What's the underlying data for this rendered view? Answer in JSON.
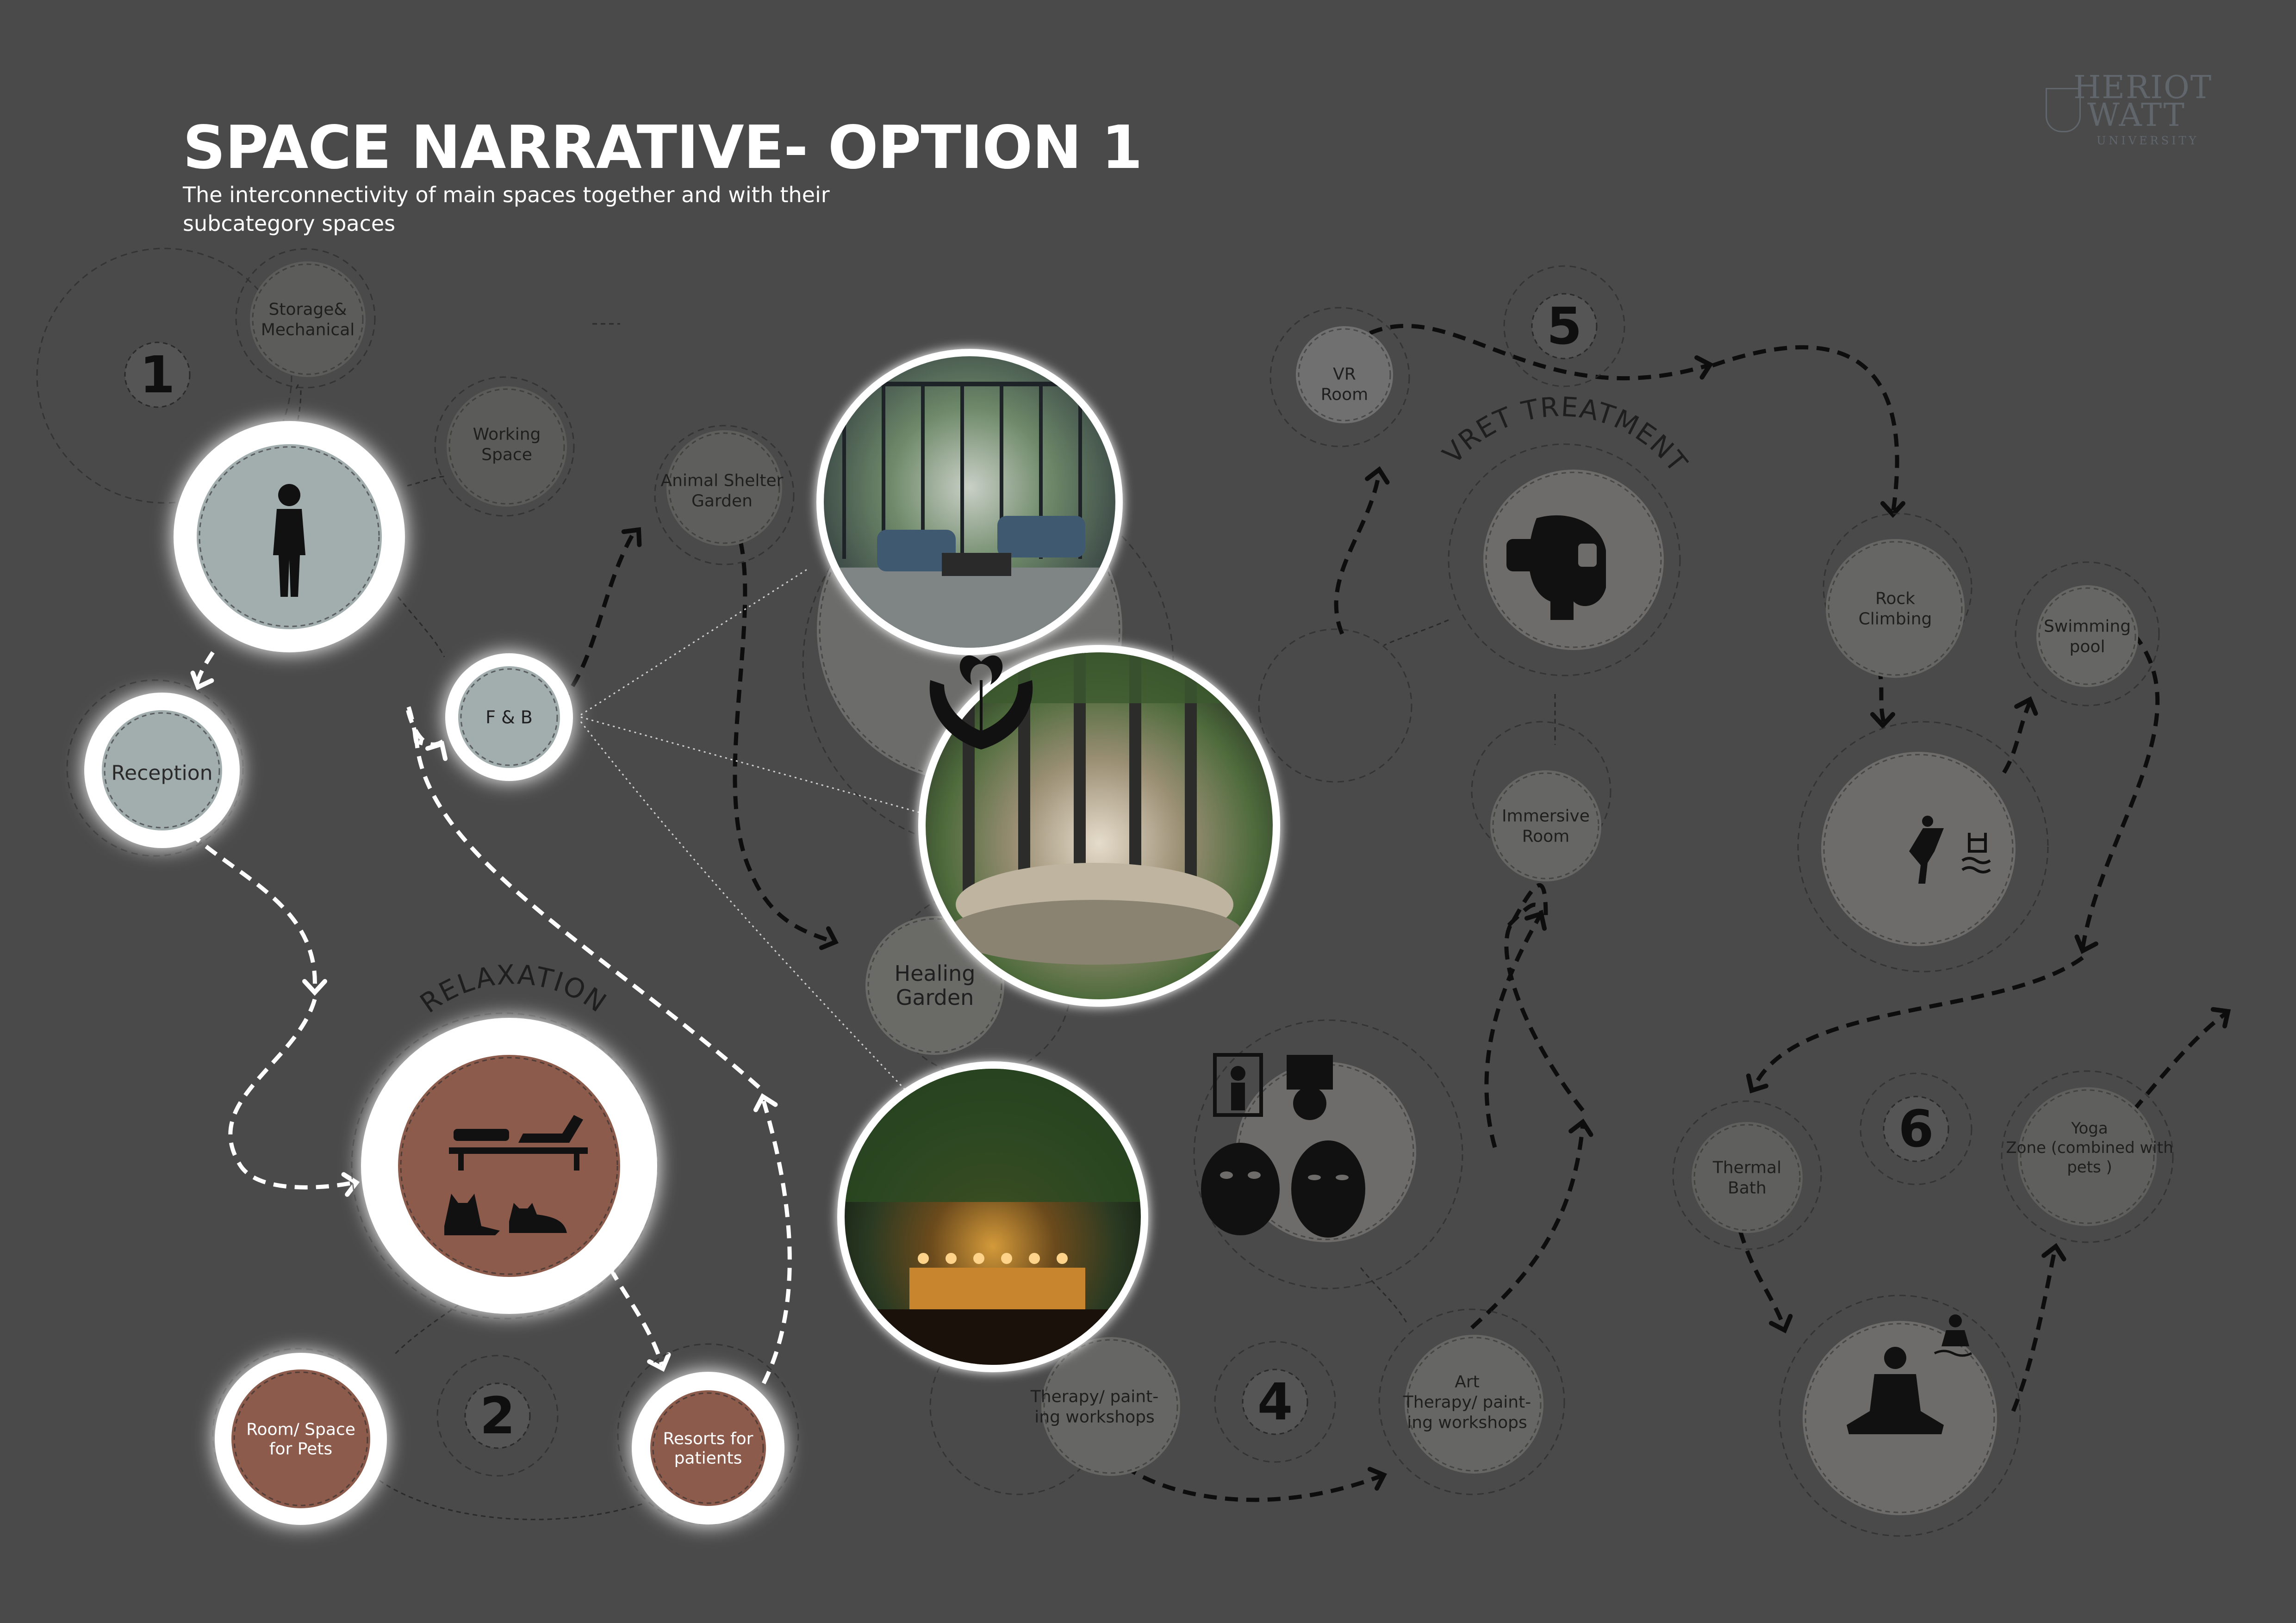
{
  "title": "SPACE NARRATIVE- OPTION 1",
  "subtitle_line1": "The interconnectivity of main spaces together and with their",
  "subtitle_line2": "subcategory spaces",
  "logo": {
    "line1": "HERIOT",
    "line2": "WATT",
    "line3": "UNIVERSITY"
  },
  "zone_numbers": [
    "1",
    "2",
    "4",
    "5",
    "6"
  ],
  "curved_labels": {
    "relaxation": "RELAXATION",
    "vret": "VRET TREATMENT"
  },
  "nodes": {
    "storage": [
      "Storage&",
      "Mechanical"
    ],
    "working": [
      "Working",
      "Space"
    ],
    "animal_shelter": [
      "Animal Shelter",
      "Garden"
    ],
    "fnb": [
      "F & B"
    ],
    "reception": [
      "Reception"
    ],
    "healing": [
      "Healing",
      "Garden"
    ],
    "room_pets": [
      "Room/ Space",
      "for Pets"
    ],
    "resorts": [
      "Resorts for",
      "patients"
    ],
    "therapy_left": [
      "Therapy/ paint-",
      "ing workshops"
    ],
    "art_therapy": [
      "Art",
      "Therapy/ paint-",
      "ing workshops"
    ],
    "vr_room": [
      "VR",
      "Room"
    ],
    "immersive": [
      "Immersive",
      "Room"
    ],
    "rock": [
      "Rock",
      "Climbing"
    ],
    "swimming": [
      "Swimming",
      "pool"
    ],
    "thermal": [
      "Thermal",
      "Bath"
    ],
    "yoga": [
      "Yoga",
      "Zone (combined with",
      "pets )"
    ]
  },
  "icons": [
    "person-icon",
    "hands-flower-icon",
    "loungers-pets-icon",
    "vr-headset-icon",
    "art-masks-icon",
    "climbing-pool-icon",
    "meditation-bath-icon"
  ],
  "colors": {
    "background": "#4a4a4a",
    "sage": "#a2adad",
    "terracotta": "#8d5b4c",
    "dark_circle": "#6c6c6b",
    "white": "#ffffff"
  }
}
